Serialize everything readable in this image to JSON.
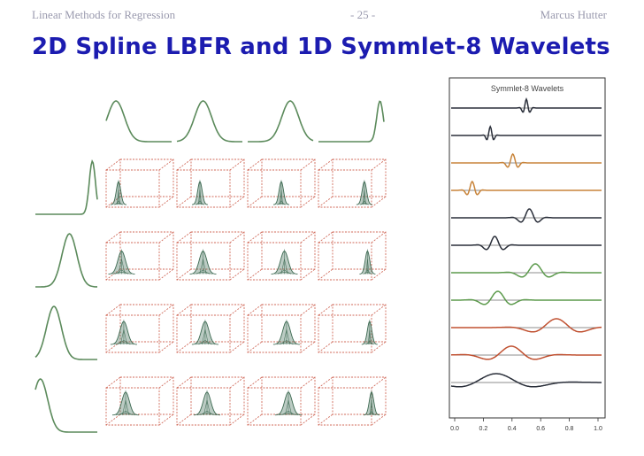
{
  "header": {
    "left": "Linear Methods for Regression",
    "center": "- 25 -",
    "right": "Marcus Hutter"
  },
  "title": "2D Spline LBFR and 1D Symmlet-8 Wavelets",
  "colors": {
    "header": "#9a9aae",
    "title": "#1c1cb0",
    "spline_curve": "#5b8a5b",
    "box_edges": "#d06a5a",
    "mesh": "#3d6a52",
    "wavelet_dark": "#2a2f3a",
    "wavelet_orange": "#c8843a",
    "wavelet_green": "#5c9a4c",
    "wavelet_red": "#c05030"
  },
  "wavelet_panel": {
    "title": "Symmlet-8 Wavelets",
    "x_ticks": [
      "0.0",
      "0.2",
      "0.4",
      "0.6",
      "0.8",
      "1.0"
    ],
    "wavelets": [
      {
        "color": "dark",
        "center": 0.5,
        "scale": 0.02
      },
      {
        "color": "dark",
        "center": 0.26,
        "scale": 0.02
      },
      {
        "color": "orange",
        "center": 0.41,
        "scale": 0.03
      },
      {
        "color": "orange",
        "center": 0.14,
        "scale": 0.03
      },
      {
        "color": "dark",
        "center": 0.52,
        "scale": 0.05
      },
      {
        "color": "dark",
        "center": 0.29,
        "scale": 0.05
      },
      {
        "color": "green",
        "center": 0.56,
        "scale": 0.08
      },
      {
        "color": "green",
        "center": 0.31,
        "scale": 0.08
      },
      {
        "color": "red",
        "center": 0.7,
        "scale": 0.14
      },
      {
        "color": "red",
        "center": 0.4,
        "scale": 0.14
      },
      {
        "color": "dark",
        "center": 0.3,
        "scale": 0.22
      }
    ]
  }
}
